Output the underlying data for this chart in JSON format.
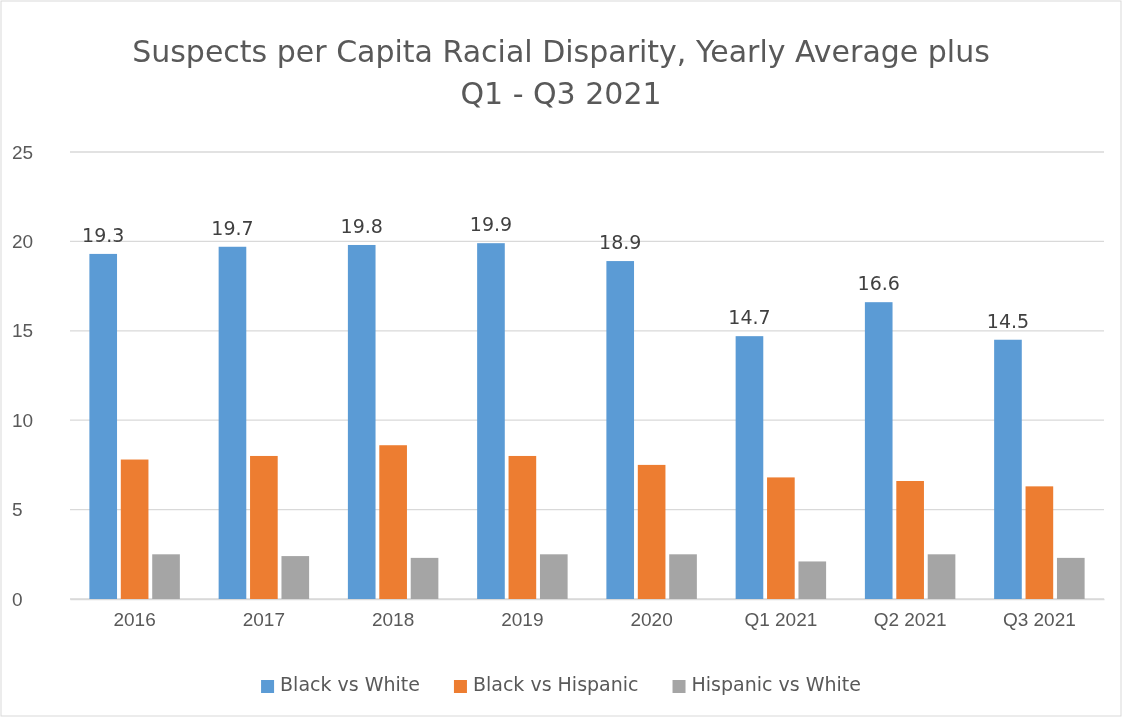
{
  "chart_data": {
    "type": "bar",
    "title": "Suspects per Capita Racial Disparity, Yearly Average plus Q1 - Q3 2021",
    "categories": [
      "2016",
      "2017",
      "2018",
      "2019",
      "2020",
      "Q1 2021",
      "Q2 2021",
      "Q3 2021"
    ],
    "series": [
      {
        "name": "Black vs White",
        "color": "#5b9bd5",
        "values": [
          19.3,
          19.7,
          19.8,
          19.9,
          18.9,
          14.7,
          16.6,
          14.5
        ],
        "value_labels": [
          "19.3",
          "19.7",
          "19.8",
          "19.9",
          "18.9",
          "14.7",
          "16.6",
          "14.5"
        ]
      },
      {
        "name": "Black vs Hispanic",
        "color": "#ed7d31",
        "values": [
          7.8,
          8.0,
          8.6,
          8.0,
          7.5,
          6.8,
          6.6,
          6.3
        ]
      },
      {
        "name": "Hispanic vs White",
        "color": "#a5a5a5",
        "values": [
          2.5,
          2.4,
          2.3,
          2.5,
          2.5,
          2.1,
          2.5,
          2.3
        ]
      }
    ],
    "ylim": [
      0,
      25
    ],
    "yticks": [
      0,
      5,
      10,
      15,
      20,
      25
    ],
    "grid": "y",
    "legend": "bottom"
  }
}
